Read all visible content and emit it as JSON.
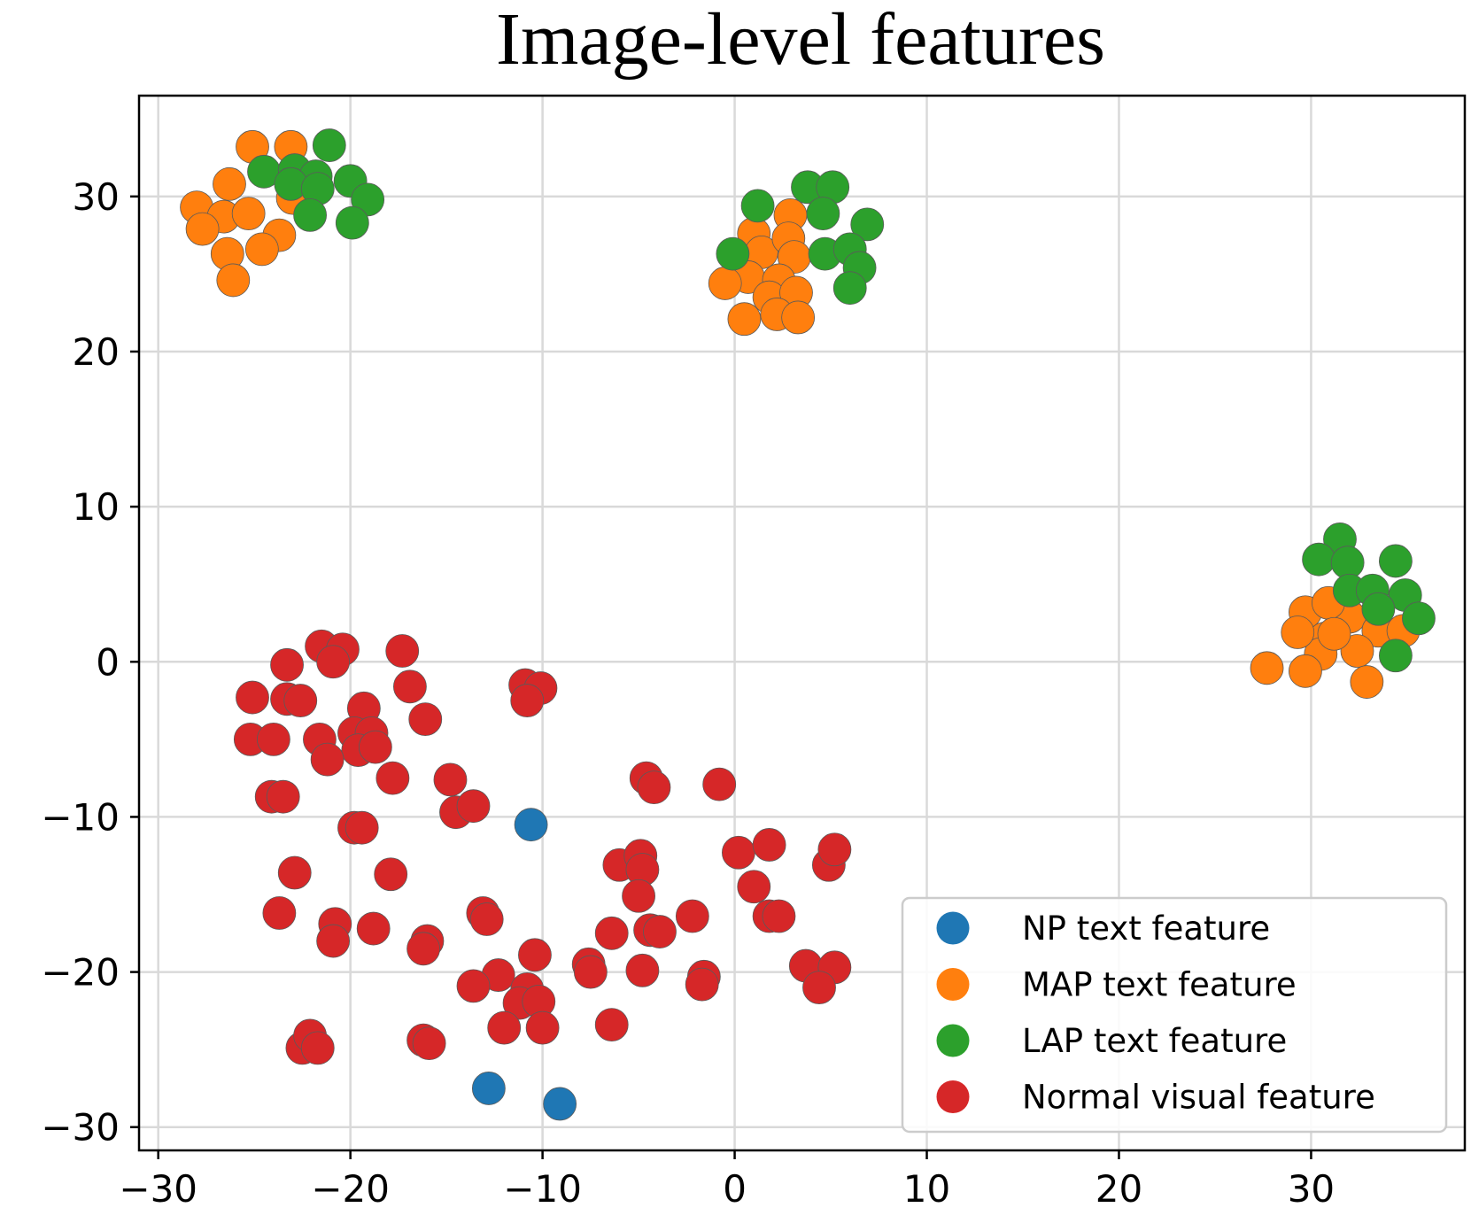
{
  "chart_data": {
    "type": "scatter",
    "title": "Image-level features",
    "xlabel": "",
    "ylabel": "",
    "xlim": [
      -31,
      38
    ],
    "ylim": [
      -31.5,
      36.5
    ],
    "xticks": [
      -30,
      -20,
      -10,
      0,
      10,
      20,
      30
    ],
    "yticks": [
      -30,
      -20,
      -10,
      0,
      10,
      20,
      30
    ],
    "grid": true,
    "legend_position": "bottom-right",
    "series": [
      {
        "name": "NP text feature",
        "color": "#1f77b4",
        "points": [
          [
            -10.6,
            -10.5
          ],
          [
            -12.8,
            -27.5
          ],
          [
            -9.1,
            -28.5
          ]
        ]
      },
      {
        "name": "MAP text feature",
        "color": "#ff7f0e",
        "points": [
          [
            -25.1,
            33.2
          ],
          [
            -23.1,
            33.2
          ],
          [
            -26.3,
            30.8
          ],
          [
            -28.0,
            29.3
          ],
          [
            -26.6,
            28.7
          ],
          [
            -25.3,
            28.9
          ],
          [
            -23.0,
            29.9
          ],
          [
            -27.7,
            27.9
          ],
          [
            -23.7,
            27.5
          ],
          [
            -26.4,
            26.3
          ],
          [
            -24.6,
            26.6
          ],
          [
            -26.1,
            24.6
          ],
          [
            1.0,
            27.6
          ],
          [
            2.9,
            28.8
          ],
          [
            1.4,
            26.4
          ],
          [
            2.8,
            27.3
          ],
          [
            3.1,
            26.1
          ],
          [
            0.7,
            24.8
          ],
          [
            -0.5,
            24.4
          ],
          [
            2.3,
            24.6
          ],
          [
            1.8,
            23.5
          ],
          [
            3.2,
            23.8
          ],
          [
            0.5,
            22.1
          ],
          [
            2.2,
            22.4
          ],
          [
            3.3,
            22.2
          ],
          [
            32.0,
            2.9
          ],
          [
            33.5,
            2.0
          ],
          [
            34.8,
            2.0
          ],
          [
            30.7,
            1.5
          ],
          [
            30.5,
            0.5
          ],
          [
            32.4,
            0.7
          ],
          [
            27.7,
            -0.4
          ],
          [
            29.7,
            -0.6
          ],
          [
            32.9,
            -1.3
          ],
          [
            29.7,
            3.2
          ],
          [
            29.3,
            1.9
          ],
          [
            30.9,
            3.8
          ],
          [
            31.2,
            1.8
          ]
        ]
      },
      {
        "name": "LAP text feature",
        "color": "#2ca02c",
        "points": [
          [
            -21.1,
            33.3
          ],
          [
            -24.5,
            31.6
          ],
          [
            -22.9,
            31.7
          ],
          [
            -21.8,
            31.3
          ],
          [
            -23.1,
            30.8
          ],
          [
            -21.7,
            30.5
          ],
          [
            -20.0,
            31.0
          ],
          [
            -19.1,
            29.8
          ],
          [
            -22.1,
            28.8
          ],
          [
            -19.9,
            28.3
          ],
          [
            1.2,
            29.4
          ],
          [
            3.8,
            30.6
          ],
          [
            5.1,
            30.6
          ],
          [
            4.6,
            28.9
          ],
          [
            6.9,
            28.2
          ],
          [
            -0.1,
            26.3
          ],
          [
            4.7,
            26.3
          ],
          [
            6.0,
            26.6
          ],
          [
            6.5,
            25.4
          ],
          [
            6.0,
            24.1
          ],
          [
            31.5,
            7.9
          ],
          [
            30.4,
            6.6
          ],
          [
            31.9,
            6.4
          ],
          [
            34.4,
            6.5
          ],
          [
            32.0,
            4.6
          ],
          [
            33.2,
            4.6
          ],
          [
            34.9,
            4.3
          ],
          [
            33.5,
            3.4
          ],
          [
            35.6,
            2.8
          ],
          [
            34.4,
            0.4
          ]
        ]
      },
      {
        "name": "Normal visual feature",
        "color": "#d62728",
        "points": [
          [
            -21.5,
            1.0
          ],
          [
            -20.4,
            0.8
          ],
          [
            -17.3,
            0.7
          ],
          [
            -20.9,
            0.0
          ],
          [
            -23.3,
            -0.2
          ],
          [
            -25.1,
            -2.3
          ],
          [
            -23.3,
            -2.4
          ],
          [
            -22.6,
            -2.5
          ],
          [
            -16.9,
            -1.6
          ],
          [
            -10.9,
            -1.5
          ],
          [
            -10.1,
            -1.7
          ],
          [
            -10.8,
            -2.5
          ],
          [
            -19.3,
            -3.0
          ],
          [
            -16.1,
            -3.7
          ],
          [
            -19.8,
            -4.6
          ],
          [
            -18.9,
            -4.6
          ],
          [
            -25.2,
            -5.0
          ],
          [
            -24.0,
            -5.0
          ],
          [
            -21.6,
            -5.0
          ],
          [
            -19.6,
            -5.7
          ],
          [
            -18.7,
            -5.5
          ],
          [
            -21.2,
            -6.3
          ],
          [
            -17.8,
            -7.5
          ],
          [
            -14.8,
            -7.6
          ],
          [
            -4.6,
            -7.5
          ],
          [
            -4.2,
            -8.1
          ],
          [
            -0.8,
            -7.9
          ],
          [
            -24.1,
            -8.7
          ],
          [
            -23.5,
            -8.7
          ],
          [
            -14.5,
            -9.7
          ],
          [
            -13.6,
            -9.3
          ],
          [
            -19.8,
            -10.7
          ],
          [
            -19.4,
            -10.7
          ],
          [
            -22.9,
            -13.6
          ],
          [
            -17.9,
            -13.7
          ],
          [
            -6.0,
            -13.1
          ],
          [
            -4.9,
            -12.5
          ],
          [
            -4.8,
            -13.4
          ],
          [
            0.2,
            -12.3
          ],
          [
            1.8,
            -11.8
          ],
          [
            4.9,
            -13.1
          ],
          [
            5.2,
            -12.1
          ],
          [
            -5.0,
            -15.1
          ],
          [
            1.0,
            -14.5
          ],
          [
            -23.7,
            -16.2
          ],
          [
            -13.1,
            -16.2
          ],
          [
            -12.9,
            -16.6
          ],
          [
            -2.2,
            -16.4
          ],
          [
            1.8,
            -16.4
          ],
          [
            2.3,
            -16.4
          ],
          [
            -20.8,
            -16.9
          ],
          [
            -18.8,
            -17.2
          ],
          [
            -6.4,
            -17.5
          ],
          [
            -4.4,
            -17.3
          ],
          [
            -3.9,
            -17.4
          ],
          [
            -16.0,
            -18.0
          ],
          [
            -16.2,
            -18.5
          ],
          [
            -20.9,
            -18.0
          ],
          [
            -10.4,
            -18.9
          ],
          [
            -7.6,
            -19.5
          ],
          [
            -7.5,
            -20.0
          ],
          [
            -4.8,
            -19.9
          ],
          [
            -12.3,
            -20.2
          ],
          [
            -13.6,
            -20.9
          ],
          [
            -1.6,
            -20.3
          ],
          [
            -1.7,
            -20.8
          ],
          [
            3.7,
            -19.6
          ],
          [
            5.2,
            -19.7
          ],
          [
            4.4,
            -21.0
          ],
          [
            -10.8,
            -21.1
          ],
          [
            -11.2,
            -22.0
          ],
          [
            -10.2,
            -21.9
          ],
          [
            -12.0,
            -23.6
          ],
          [
            -10.0,
            -23.6
          ],
          [
            -6.4,
            -23.4
          ],
          [
            -16.2,
            -24.4
          ],
          [
            -15.9,
            -24.6
          ],
          [
            -22.5,
            -24.9
          ],
          [
            -22.1,
            -24.1
          ],
          [
            -21.7,
            -24.9
          ]
        ]
      }
    ]
  }
}
